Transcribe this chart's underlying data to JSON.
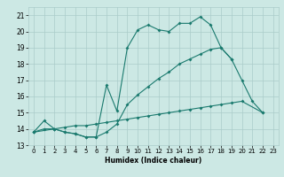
{
  "title": "",
  "xlabel": "Humidex (Indice chaleur)",
  "bg_color": "#cce8e4",
  "grid_color": "#aaccca",
  "line_color": "#1a7a6e",
  "xlim": [
    -0.5,
    23.5
  ],
  "ylim": [
    13,
    21.5
  ],
  "yticks": [
    13,
    14,
    15,
    16,
    17,
    18,
    19,
    20,
    21
  ],
  "xticks": [
    0,
    1,
    2,
    3,
    4,
    5,
    6,
    7,
    8,
    9,
    10,
    11,
    12,
    13,
    14,
    15,
    16,
    17,
    18,
    19,
    20,
    21,
    22,
    23
  ],
  "line1_x": [
    0,
    1,
    2,
    3,
    4,
    5,
    6,
    7,
    8,
    9,
    10,
    11,
    12,
    13,
    14,
    15,
    16,
    17,
    18,
    19,
    20,
    21,
    22
  ],
  "line1_y": [
    13.8,
    14.5,
    14.0,
    13.8,
    13.7,
    13.5,
    13.5,
    16.7,
    15.1,
    19.0,
    20.1,
    20.4,
    20.1,
    20.0,
    20.5,
    20.5,
    20.9,
    20.4,
    19.0,
    18.3,
    17.0,
    15.7,
    15.0
  ],
  "line2_x": [
    0,
    2,
    3,
    4,
    5,
    6,
    7,
    8,
    9,
    10,
    11,
    12,
    13,
    14,
    15,
    16,
    17,
    18,
    19
  ],
  "line2_y": [
    13.8,
    14.0,
    13.8,
    13.7,
    13.5,
    13.5,
    13.8,
    14.3,
    15.5,
    16.1,
    16.6,
    17.1,
    17.5,
    18.0,
    18.3,
    18.6,
    18.9,
    19.0,
    18.3
  ],
  "line3_x": [
    0,
    1,
    2,
    3,
    4,
    5,
    6,
    7,
    8,
    9,
    10,
    11,
    12,
    13,
    14,
    15,
    16,
    17,
    18,
    19,
    20,
    22
  ],
  "line3_y": [
    13.8,
    14.0,
    14.0,
    14.1,
    14.2,
    14.2,
    14.3,
    14.4,
    14.5,
    14.6,
    14.7,
    14.8,
    14.9,
    15.0,
    15.1,
    15.2,
    15.3,
    15.4,
    15.5,
    15.6,
    15.7,
    15.0
  ]
}
